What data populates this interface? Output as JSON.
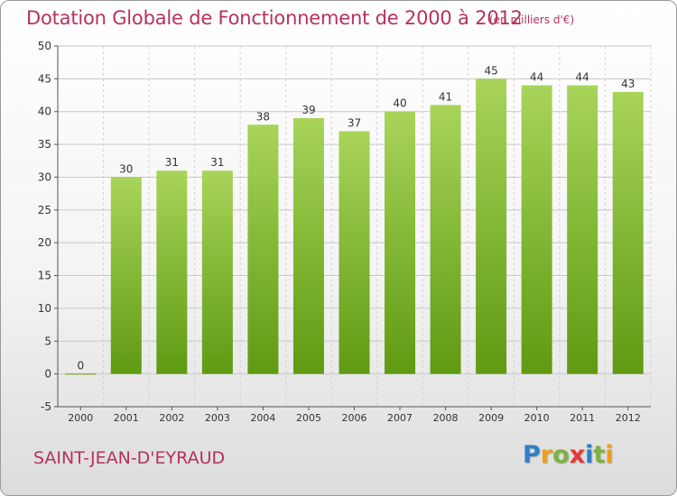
{
  "header": {
    "title": "Dotation Globale de Fonctionnement de 2000 à 2012",
    "unit": "(en milliers d'€)"
  },
  "footer": {
    "commune": "SAINT-JEAN-D'EYRAUD",
    "logo_letters": [
      "P",
      "r",
      "o",
      "x",
      "i",
      "t",
      "i"
    ],
    "logo_colors": [
      "#2e7fc9",
      "#e8a11c",
      "#7cb342",
      "#e53935",
      "#2e7fc9",
      "#7cb342",
      "#e8a11c"
    ]
  },
  "colors": {
    "bar_top": "#a8d45a",
    "bar_bottom": "#5f9a12",
    "text": "#333333",
    "brand": "#b5325b"
  },
  "chart_data": {
    "type": "bar",
    "categories": [
      "2000",
      "2001",
      "2002",
      "2003",
      "2004",
      "2005",
      "2006",
      "2007",
      "2008",
      "2009",
      "2010",
      "2011",
      "2012"
    ],
    "values": [
      0,
      30,
      31,
      31,
      38,
      39,
      37,
      40,
      41,
      45,
      44,
      44,
      43
    ],
    "title": "Dotation Globale de Fonctionnement de 2000 à 2012",
    "ylim": [
      -5,
      50
    ],
    "yticks": [
      -5,
      0,
      5,
      10,
      15,
      20,
      25,
      30,
      35,
      40,
      45,
      50
    ],
    "grid": true,
    "legend": "none"
  }
}
